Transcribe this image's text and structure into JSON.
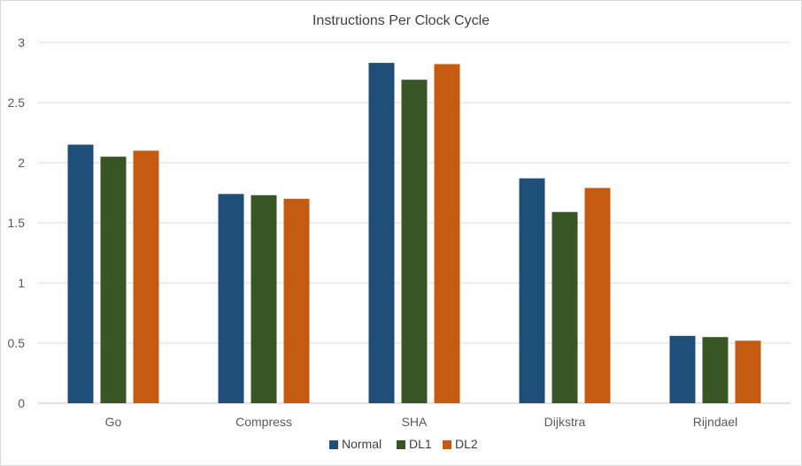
{
  "chart_data": {
    "type": "bar",
    "title": "Instructions Per Clock Cycle",
    "xlabel": "",
    "ylabel": "",
    "categories": [
      "Go",
      "Compress",
      "SHA",
      "Dijkstra",
      "Rijndael"
    ],
    "series": [
      {
        "name": "Normal",
        "color": "#1f4e79",
        "values": [
          2.15,
          1.74,
          2.83,
          1.87,
          0.56
        ]
      },
      {
        "name": "DL1",
        "color": "#375623",
        "values": [
          2.05,
          1.73,
          2.69,
          1.59,
          0.55
        ]
      },
      {
        "name": "DL2",
        "color": "#c55a11",
        "values": [
          2.1,
          1.7,
          2.82,
          1.79,
          0.52
        ]
      }
    ],
    "ylim": [
      0,
      3
    ],
    "yticks": [
      "0",
      "0.5",
      "1",
      "1.5",
      "2",
      "2.5",
      "3"
    ],
    "grid": true,
    "legend_position": "bottom"
  }
}
